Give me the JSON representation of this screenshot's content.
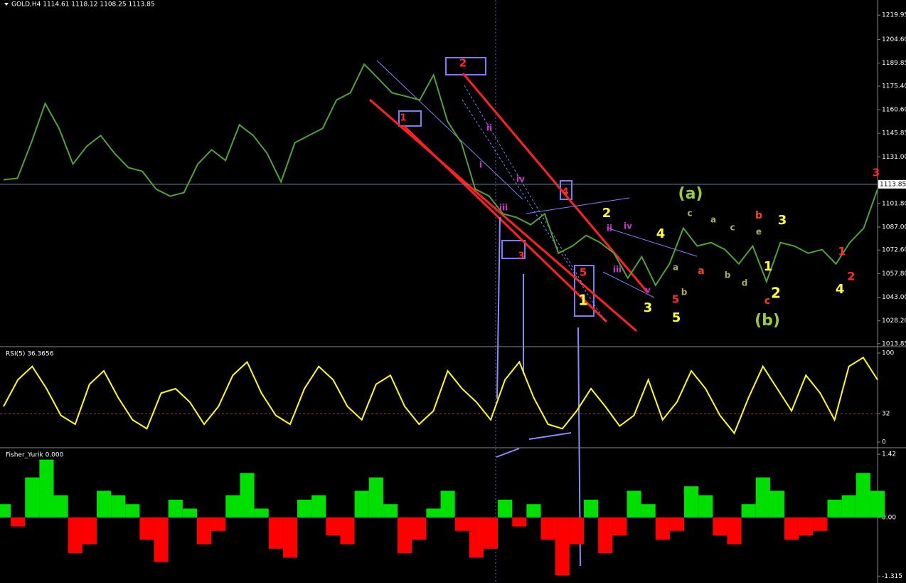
{
  "chart_data": [
    {
      "type": "line",
      "title": "GOLD,H4  1114.61 1118.12 1108.25 1113.85",
      "color": "#4fa332",
      "values": [
        1116.7,
        1117.6,
        1139.9,
        1164.5,
        1148.9,
        1126.5,
        1137.7,
        1144.4,
        1133.2,
        1124.3,
        1122.0,
        1110.8,
        1106.4,
        1108.6,
        1126.5,
        1135.5,
        1128.8,
        1151.1,
        1144.4,
        1133.2,
        1115.3,
        1139.9,
        1144.4,
        1148.9,
        1166.7,
        1171.2,
        1189.1,
        1180.2,
        1171.2,
        1169.0,
        1166.7,
        1182.4,
        1153.3,
        1139.9,
        1110.8,
        1106.4,
        1095.3,
        1093.0,
        1088.5,
        1095.3,
        1070.6,
        1075.1,
        1081.8,
        1077.3,
        1070.6,
        1055.0,
        1068.4,
        1050.5,
        1063.9,
        1086.3,
        1075.1,
        1077.3,
        1072.9,
        1063.9,
        1075.1,
        1052.8,
        1077.3,
        1075.1,
        1070.6,
        1072.9,
        1063.9,
        1077.3,
        1086.3,
        1110.8
      ],
      "ylim": [
        1012.0,
        1229.4
      ],
      "yticks": [
        {
          "value": 1219.95,
          "label": "1219.95"
        },
        {
          "value": 1204.6,
          "label": "1204.60"
        },
        {
          "value": 1189.85,
          "label": "1189.85"
        },
        {
          "value": 1175.4,
          "label": "1175.40"
        },
        {
          "value": 1160.6,
          "label": "1160.60"
        },
        {
          "value": 1145.85,
          "label": "1145.85"
        },
        {
          "value": 1131.0,
          "label": "1131.00"
        },
        {
          "value": 1101.8,
          "label": "1101.80"
        },
        {
          "value": 1087.0,
          "label": "1087.00"
        },
        {
          "value": 1072.6,
          "label": "1072.60"
        },
        {
          "value": 1057.8,
          "label": "1057.80"
        },
        {
          "value": 1043.0,
          "label": "1043.00"
        },
        {
          "value": 1028.2,
          "label": "1028.20"
        },
        {
          "value": 1013.85,
          "label": "1013.85"
        }
      ],
      "current_price": 1113.85,
      "annotations": [
        {
          "text": "2",
          "color": "#ff2a2a"
        },
        {
          "text": "1",
          "color": "#ff2a2a"
        },
        {
          "text": "4",
          "color": "#ff2a2a"
        },
        {
          "text": "3",
          "color": "#ff2a2a"
        },
        {
          "text": "5",
          "color": "#ff2a2a"
        },
        {
          "text": "1",
          "color": "#ffff33"
        },
        {
          "text": "ii",
          "color": "#cc33cc"
        },
        {
          "text": "i",
          "color": "#cc33cc"
        },
        {
          "text": "iv",
          "color": "#cc33cc"
        },
        {
          "text": "iii",
          "color": "#cc33cc"
        },
        {
          "text": "2",
          "color": "#ffff33"
        },
        {
          "text": "ii",
          "color": "#cc33cc"
        },
        {
          "text": "iv",
          "color": "#cc33cc"
        },
        {
          "text": "4",
          "color": "#ffff33"
        },
        {
          "text": "iii",
          "color": "#cc33cc"
        },
        {
          "text": "v",
          "color": "#cc33cc"
        },
        {
          "text": "3",
          "color": "#ffff33"
        },
        {
          "text": "5",
          "color": "#ff2a2a"
        },
        {
          "text": "5",
          "color": "#ffff33"
        },
        {
          "text": "a",
          "color": "#a0b060"
        },
        {
          "text": "b",
          "color": "#a0b060"
        },
        {
          "text": "(a)",
          "color": "#9acd32"
        },
        {
          "text": "c",
          "color": "#a0b060"
        },
        {
          "text": "a",
          "color": "#a0b060"
        },
        {
          "text": "c",
          "color": "#a0b060"
        },
        {
          "text": "b",
          "color": "#a0b060"
        },
        {
          "text": "d",
          "color": "#a0b060"
        },
        {
          "text": "e",
          "color": "#a0b060"
        },
        {
          "text": "a",
          "color": "#ff4020"
        },
        {
          "text": "b",
          "color": "#ff4020"
        },
        {
          "text": "3",
          "color": "#ffff33"
        },
        {
          "text": "1",
          "color": "#ffff33"
        },
        {
          "text": "c",
          "color": "#ff4020"
        },
        {
          "text": "2",
          "color": "#ffff33"
        },
        {
          "text": "(b)",
          "color": "#9acd32"
        },
        {
          "text": "1",
          "color": "#ff2a2a"
        },
        {
          "text": "2",
          "color": "#ff2a2a"
        },
        {
          "text": "4",
          "color": "#ffff33"
        },
        {
          "text": "3",
          "color": "#ff2a2a"
        }
      ]
    },
    {
      "type": "line",
      "title": "RSI(5) 36.3656",
      "color": "#ffff00",
      "values": [
        40,
        70,
        85,
        60,
        30,
        20,
        65,
        80,
        50,
        25,
        15,
        55,
        60,
        45,
        20,
        40,
        75,
        90,
        55,
        30,
        20,
        60,
        85,
        70,
        40,
        25,
        65,
        75,
        40,
        20,
        35,
        80,
        60,
        45,
        25,
        70,
        90,
        50,
        20,
        15,
        35,
        60,
        40,
        18,
        30,
        70,
        25,
        45,
        80,
        60,
        30,
        10,
        50,
        85,
        60,
        35,
        75,
        55,
        25,
        85,
        95,
        70
      ],
      "ylim": [
        -5.6,
        106.4
      ],
      "yticks": [
        0,
        32,
        100
      ],
      "level": 32,
      "level_color": "#b03030"
    },
    {
      "type": "histogram",
      "title": "Fisher_Yurik 0.000",
      "up_color": "#00e000",
      "down_color": "#ff0000",
      "values": [
        0.3,
        -0.2,
        0.9,
        1.3,
        0.5,
        -0.8,
        -0.6,
        0.6,
        0.5,
        0.3,
        -0.5,
        -1.0,
        0.4,
        0.2,
        -0.6,
        -0.3,
        0.5,
        1.0,
        0.2,
        -0.7,
        -0.9,
        0.4,
        0.5,
        -0.4,
        -0.6,
        0.6,
        0.9,
        0.3,
        -0.8,
        -0.5,
        0.2,
        0.6,
        -0.3,
        -0.9,
        -0.7,
        0.4,
        -0.2,
        0.3,
        -0.5,
        -1.3,
        -0.6,
        0.4,
        -0.8,
        -0.4,
        0.6,
        0.3,
        -0.5,
        -0.3,
        0.7,
        0.5,
        -0.4,
        -0.6,
        0.3,
        0.9,
        0.6,
        -0.5,
        -0.4,
        -0.3,
        0.4,
        0.5,
        1.0,
        0.6
      ],
      "ylim": [
        -1.47,
        1.55
      ],
      "yticks": [
        {
          "value": 1.42,
          "label": "1.42"
        },
        {
          "value": 0,
          "label": "0.00"
        },
        -1.315
      ]
    }
  ]
}
